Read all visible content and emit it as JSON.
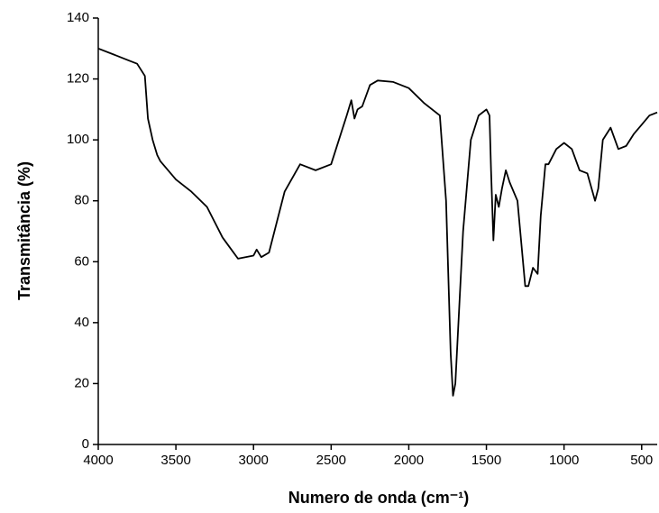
{
  "chart_data": {
    "type": "line",
    "xlabel": "Numero de onda (cm⁻¹)",
    "ylabel": "Transmitância (%)",
    "xlim": [
      4000,
      400
    ],
    "ylim": [
      0,
      140
    ],
    "xticks": [
      4000,
      3500,
      3000,
      2500,
      2000,
      1500,
      1000,
      500
    ],
    "yticks": [
      0,
      20,
      40,
      60,
      80,
      100,
      120,
      140
    ],
    "series": [
      {
        "color": "#000000",
        "x": [
          4000,
          3900,
          3800,
          3750,
          3700,
          3680,
          3650,
          3620,
          3600,
          3500,
          3400,
          3300,
          3200,
          3100,
          3000,
          2980,
          2950,
          2900,
          2800,
          2700,
          2600,
          2500,
          2400,
          2370,
          2350,
          2330,
          2300,
          2250,
          2200,
          2100,
          2000,
          1900,
          1800,
          1760,
          1730,
          1715,
          1700,
          1650,
          1600,
          1550,
          1500,
          1480,
          1470,
          1455,
          1440,
          1420,
          1400,
          1375,
          1350,
          1300,
          1250,
          1230,
          1200,
          1170,
          1150,
          1120,
          1100,
          1050,
          1000,
          950,
          900,
          850,
          800,
          780,
          750,
          700,
          650,
          600,
          550,
          500,
          450,
          400
        ],
        "values": [
          130,
          128,
          126,
          125,
          121,
          107,
          100,
          95,
          93,
          87,
          83,
          78,
          68,
          61,
          62,
          64,
          61.5,
          63,
          83,
          92,
          90,
          92,
          108,
          113,
          107,
          110,
          111,
          118,
          119.5,
          119,
          117,
          112,
          108,
          80,
          30,
          16,
          20,
          70,
          100,
          108,
          110,
          108,
          90,
          67,
          82,
          78,
          84,
          90,
          86,
          80,
          52,
          52,
          58,
          56,
          75,
          92,
          92,
          97,
          99,
          97,
          90,
          89,
          80,
          84,
          100,
          104,
          97,
          98,
          102,
          105,
          108,
          109
        ]
      }
    ]
  }
}
